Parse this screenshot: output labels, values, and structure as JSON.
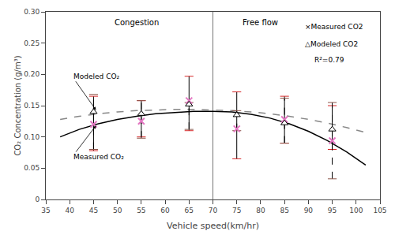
{
  "chart_data": {
    "type": "scatter",
    "xlabel": "Vehicle speed(km/hr)",
    "ylabel": "CO₂ Concentration (g/m³)",
    "xlim": [
      35,
      105
    ],
    "ylim": [
      0,
      0.3
    ],
    "xticks": [
      35,
      40,
      45,
      50,
      55,
      60,
      65,
      70,
      75,
      80,
      85,
      90,
      95,
      100,
      105
    ],
    "yticks": [
      0,
      0.05,
      {
        "value": 0.1,
        "label": "0.10"
      },
      0.15,
      {
        "value": 0.2,
        "label": "0.20"
      },
      0.25,
      {
        "value": 0.3,
        "label": "0.30"
      }
    ],
    "grid": false,
    "divider_x": 70,
    "series": [
      {
        "type": "line",
        "color": "#000000",
        "line_style": "solid",
        "x": [
          38,
          42,
          46,
          50,
          54,
          58,
          62,
          66,
          70,
          74,
          78,
          82,
          86,
          90,
          94,
          98,
          102
        ],
        "values": [
          0.1,
          0.112,
          0.121,
          0.128,
          0.133,
          0.137,
          0.139,
          0.141,
          0.141,
          0.14,
          0.136,
          0.13,
          0.121,
          0.109,
          0.094,
          0.076,
          0.055
        ]
      },
      {
        "type": "line",
        "color": "#888888",
        "line_style": "dashed",
        "x": [
          38,
          42,
          46,
          50,
          54,
          58,
          62,
          66,
          70,
          74,
          78,
          82,
          86,
          90,
          94,
          98,
          102
        ],
        "values": [
          0.128,
          0.133,
          0.137,
          0.14,
          0.142,
          0.143,
          0.144,
          0.144,
          0.143,
          0.142,
          0.14,
          0.137,
          0.133,
          0.128,
          0.122,
          0.115,
          0.107
        ]
      },
      {
        "type": "scatter",
        "marker": "x",
        "color": "#000000",
        "line_style": "solid",
        "x": [
          45,
          55,
          65,
          75,
          85,
          95
        ],
        "values": [
          0.12,
          0.125,
          0.158,
          0.113,
          0.128,
          0.094
        ],
        "lower": [
          0.078,
          0.1,
          0.11,
          0.065,
          0.09,
          0.08
        ],
        "upper": [
          0.165,
          0.158,
          0.197,
          0.172,
          0.165,
          0.15
        ]
      },
      {
        "type": "scatter",
        "marker": "triangle",
        "color": "#000000",
        "line_style": "dashed",
        "x": [
          45,
          55,
          65,
          75,
          85,
          95
        ],
        "values": [
          0.14,
          0.137,
          0.152,
          0.135,
          0.122,
          0.112
        ],
        "lower": [
          0.08,
          0.098,
          0.112,
          0.11,
          0.09,
          0.033
        ],
        "upper": [
          0.168,
          0.158,
          0.155,
          0.142,
          0.162,
          0.155
        ]
      }
    ],
    "annotations": [
      {
        "text": "Congestion",
        "x": 54,
        "y": 0.293
      },
      {
        "text": "Free flow",
        "x": 80,
        "y": 0.293
      },
      {
        "text": "Modeled CO₂",
        "x": 45.5,
        "y": 0.143,
        "text_x": 40.5,
        "text_y": 0.197
      },
      {
        "text": "Measured CO₂",
        "x": 45.5,
        "y": 0.118,
        "text_x": 40.5,
        "text_y": 0.068
      }
    ],
    "key_texts": [
      {
        "text": "×Measured CO2",
        "x": 89,
        "y": 0.285
      },
      {
        "text": "△Modeled CO2",
        "x": 89,
        "y": 0.257
      },
      {
        "text": "R²=0.79",
        "x": 91,
        "y": 0.232
      }
    ]
  }
}
